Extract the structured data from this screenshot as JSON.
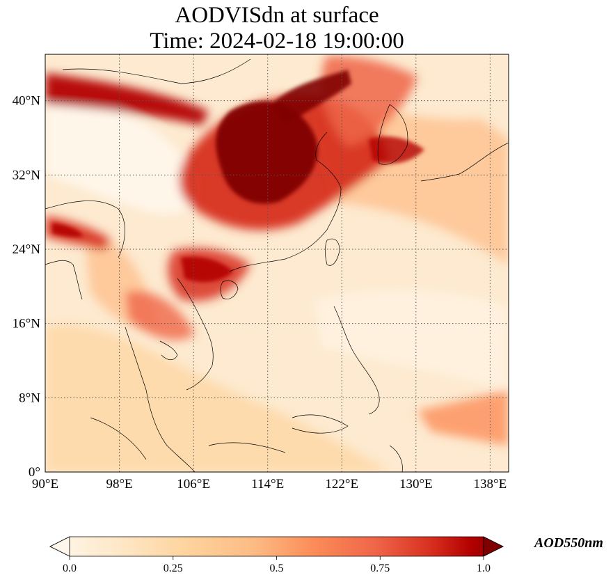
{
  "title": {
    "line1": "AODVISdn at surface",
    "line2": "Time: 2024-02-18 19:00:00"
  },
  "map": {
    "lon_range": [
      90,
      140
    ],
    "lat_range": [
      0,
      45
    ],
    "lon_ticks": [
      {
        "value": 90,
        "label": "90°E"
      },
      {
        "value": 98,
        "label": "98°E"
      },
      {
        "value": 106,
        "label": "106°E"
      },
      {
        "value": 114,
        "label": "114°E"
      },
      {
        "value": 122,
        "label": "122°E"
      },
      {
        "value": 130,
        "label": "130°E"
      },
      {
        "value": 138,
        "label": "138°E"
      }
    ],
    "lat_ticks": [
      {
        "value": 0,
        "label": "0°"
      },
      {
        "value": 8,
        "label": "8°N"
      },
      {
        "value": 16,
        "label": "16°N"
      },
      {
        "value": 24,
        "label": "24°N"
      },
      {
        "value": 32,
        "label": "32°N"
      },
      {
        "value": 40,
        "label": "40°N"
      }
    ],
    "gridlines": true,
    "colormap": "OrRd",
    "colors": {
      "low": "#fff7ec",
      "mid_low": "#fdd49e",
      "mid": "#fc8d59",
      "mid_high": "#d7301f",
      "high": "#7f0000",
      "coastline": "#000000"
    }
  },
  "colorbar": {
    "label": "AOD550nm",
    "min": 0.0,
    "max": 1.0,
    "extend": "both",
    "ticks": [
      {
        "value": 0.0,
        "label": "0.0"
      },
      {
        "value": 0.25,
        "label": "0.25"
      },
      {
        "value": 0.5,
        "label": "0.5"
      },
      {
        "value": 0.75,
        "label": "0.75"
      },
      {
        "value": 1.0,
        "label": "1.0"
      }
    ]
  }
}
